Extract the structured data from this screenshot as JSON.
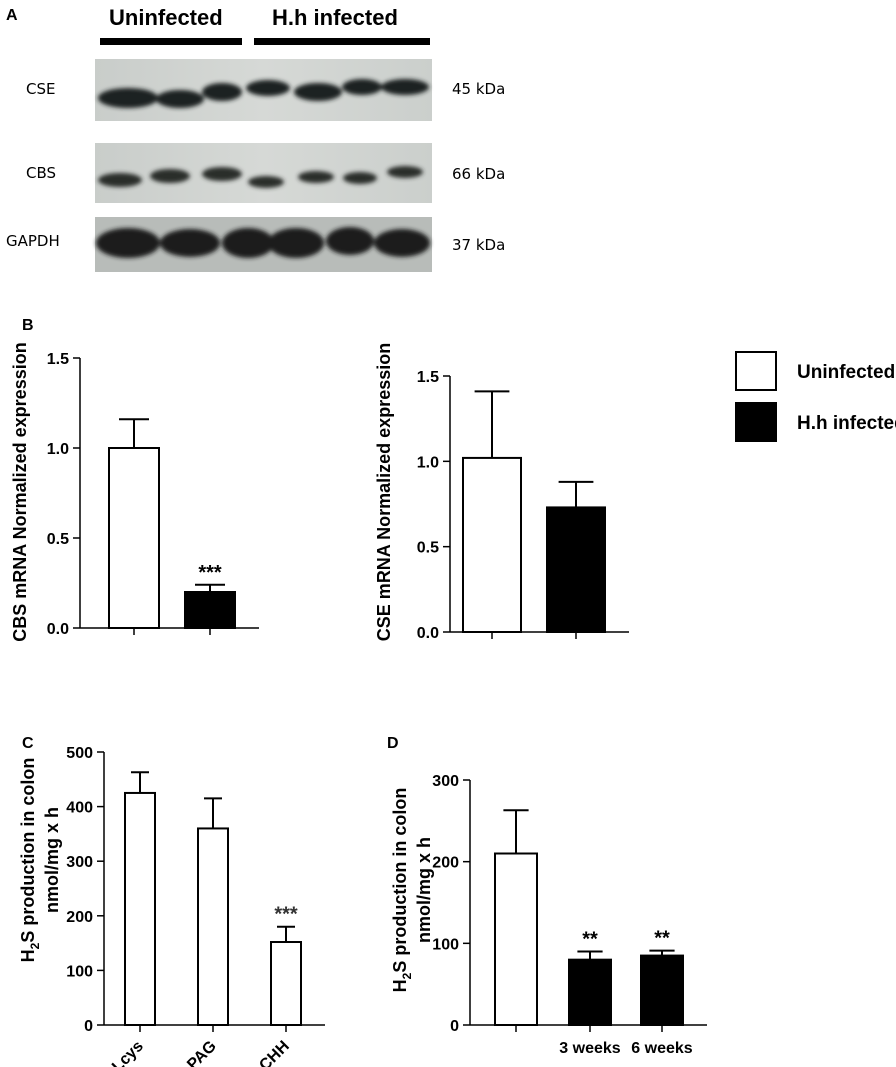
{
  "panel_a": {
    "letter": "A",
    "groups": [
      "Uninfected",
      "H.h infected"
    ],
    "bands": [
      {
        "name": "CSE",
        "kda": "45 kDa"
      },
      {
        "name": "CBS",
        "kda": "66 kDa"
      },
      {
        "name": "GAPDH",
        "kda": "37 kDa"
      }
    ]
  },
  "legend": {
    "entries": [
      {
        "label": "Uninfected",
        "fill": "#ffffff"
      },
      {
        "label": "H.h infected",
        "fill": "#000000"
      }
    ]
  },
  "colors": {
    "uninfected": "#ffffff",
    "infected": "#000000",
    "axis": "#000000"
  },
  "chart_data": [
    {
      "panel": "B",
      "type": "bar",
      "ylabel": "CBS mRNA Normalized expression",
      "ylim": [
        0,
        1.5
      ],
      "yticks": [
        0.0,
        0.5,
        1.0,
        1.5
      ],
      "ytick_labels": [
        "0.0",
        "0.5",
        "1.0",
        "1.5"
      ],
      "categories": [
        "",
        ""
      ],
      "values": [
        1.0,
        0.2
      ],
      "errors": [
        0.16,
        0.04
      ],
      "fills": [
        "white",
        "black"
      ],
      "annotations": [
        "",
        "***"
      ]
    },
    {
      "type": "bar",
      "ylabel": "CSE mRNA Normalized expression",
      "ylim": [
        0,
        1.5
      ],
      "yticks": [
        0.0,
        0.5,
        1.0,
        1.5
      ],
      "ytick_labels": [
        "0.0",
        "0.5",
        "1.0",
        "1.5"
      ],
      "categories": [
        "",
        ""
      ],
      "values": [
        1.02,
        0.73
      ],
      "errors": [
        0.39,
        0.15
      ],
      "fills": [
        "white",
        "black"
      ],
      "annotations": [
        "",
        ""
      ]
    },
    {
      "panel": "C",
      "type": "bar",
      "ylabel_parts": [
        "H",
        "2",
        "S production in colon"
      ],
      "ylabel2": "nmol/mg x h",
      "ylim": [
        0,
        500
      ],
      "yticks": [
        0,
        100,
        200,
        300,
        400,
        500
      ],
      "ytick_labels": [
        "0",
        "100",
        "200",
        "300",
        "400",
        "500"
      ],
      "categories": [
        "Lcys",
        "PAG",
        "CHH"
      ],
      "values": [
        425,
        360,
        152
      ],
      "errors": [
        38,
        55,
        28
      ],
      "fills": [
        "white",
        "white",
        "white"
      ],
      "annotations": [
        "",
        "",
        "***"
      ]
    },
    {
      "panel": "D",
      "type": "bar",
      "ylabel_parts": [
        "H",
        "2",
        "S production in colon"
      ],
      "ylabel2": "nmol/mg x h",
      "ylim": [
        0,
        300
      ],
      "yticks": [
        0,
        100,
        200,
        300
      ],
      "ytick_labels": [
        "0",
        "100",
        "200",
        "300"
      ],
      "categories": [
        "",
        "3 weeks",
        "6 weeks"
      ],
      "values": [
        210,
        80,
        85
      ],
      "errors": [
        53,
        10,
        6
      ],
      "fills": [
        "white",
        "black",
        "black"
      ],
      "annotations": [
        "",
        "**",
        "**"
      ]
    }
  ]
}
